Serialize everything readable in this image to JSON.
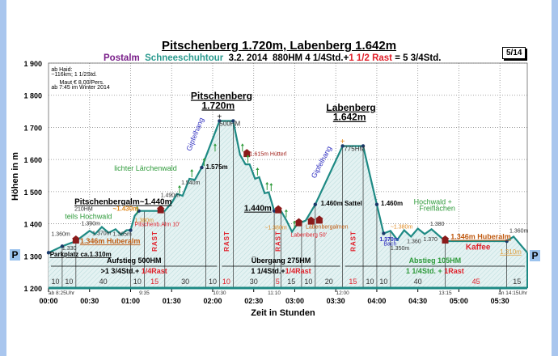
{
  "header": {
    "title": "Pitschenberg 1.720m, Labenberg 1.642m",
    "sub_location": "Postalm",
    "sub_type": "Schneeschuhtour",
    "sub_date": "3.2. 2014",
    "sub_hm": "880HM  4 1/4Std.+",
    "sub_rast": "1 1/2 Rast",
    "sub_total": "= 5 3/4Std.",
    "page": "5/14",
    "parking": "P"
  },
  "colors": {
    "profile": "#1e8a84",
    "fill": "#dceeee",
    "red": "#e0202a",
    "green": "#2e9a3a",
    "orange": "#e08a20",
    "purple": "#7a1f8a",
    "teal": "#2a9a8e",
    "blue": "#3030c0"
  },
  "chart_data": {
    "type": "area",
    "title": "Pitschenberg 1.720m, Labenberg 1.642m",
    "xlabel": "Zeit in Stunden",
    "ylabel": "Höhen in m",
    "xlim": [
      0,
      350
    ],
    "ylim": [
      1200,
      1900
    ],
    "x_unit": "minutes",
    "x_ticks": [
      {
        "t": 0,
        "label": "00:00"
      },
      {
        "t": 30,
        "label": "00:30"
      },
      {
        "t": 60,
        "label": "01:00"
      },
      {
        "t": 90,
        "label": "01:30"
      },
      {
        "t": 120,
        "label": "02:00"
      },
      {
        "t": 150,
        "label": "02:30"
      },
      {
        "t": 180,
        "label": "03:00"
      },
      {
        "t": 210,
        "label": "03:30"
      },
      {
        "t": 240,
        "label": "04:00"
      },
      {
        "t": 270,
        "label": "04:30"
      },
      {
        "t": 300,
        "label": "05:00"
      },
      {
        "t": 330,
        "label": "05:30"
      }
    ],
    "y_ticks": [
      {
        "v": 1200,
        "label": "1 200"
      },
      {
        "v": 1300,
        "label": "1 300"
      },
      {
        "v": 1400,
        "label": "1 400"
      },
      {
        "v": 1500,
        "label": "1 500"
      },
      {
        "v": 1600,
        "label": "1 600"
      },
      {
        "v": 1700,
        "label": "1 700"
      },
      {
        "v": 1800,
        "label": "1 800"
      },
      {
        "v": 1900,
        "label": "1 900"
      }
    ],
    "grid": true,
    "profile": [
      [
        0,
        1310
      ],
      [
        10,
        1330
      ],
      [
        20,
        1346
      ],
      [
        25,
        1362
      ],
      [
        30,
        1378
      ],
      [
        34,
        1368
      ],
      [
        39,
        1390
      ],
      [
        44,
        1372
      ],
      [
        49,
        1383
      ],
      [
        53,
        1366
      ],
      [
        57,
        1380
      ],
      [
        60,
        1380
      ],
      [
        63,
        1425
      ],
      [
        66,
        1440
      ],
      [
        75,
        1440
      ],
      [
        85,
        1440
      ],
      [
        90,
        1465
      ],
      [
        94,
        1493
      ],
      [
        98,
        1487
      ],
      [
        103,
        1540
      ],
      [
        107,
        1537
      ],
      [
        112,
        1575
      ],
      [
        125,
        1720
      ],
      [
        135,
        1720
      ],
      [
        140,
        1615
      ],
      [
        144,
        1585
      ],
      [
        147,
        1585
      ],
      [
        151,
        1540
      ],
      [
        154,
        1545
      ],
      [
        158,
        1495
      ],
      [
        161,
        1498
      ],
      [
        165,
        1440
      ],
      [
        170,
        1440
      ],
      [
        174,
        1410
      ],
      [
        178,
        1375
      ],
      [
        182,
        1400
      ],
      [
        188,
        1410
      ],
      [
        195,
        1460
      ],
      [
        215,
        1642
      ],
      [
        230,
        1642
      ],
      [
        240,
        1460
      ],
      [
        245,
        1370
      ],
      [
        250,
        1378
      ],
      [
        255,
        1350
      ],
      [
        260,
        1380
      ],
      [
        265,
        1360
      ],
      [
        270,
        1385
      ],
      [
        275,
        1368
      ],
      [
        280,
        1383
      ],
      [
        290,
        1346
      ],
      [
        335,
        1346
      ],
      [
        340,
        1360
      ],
      [
        350,
        1310
      ]
    ],
    "markers": [
      [
        0,
        1310
      ],
      [
        10,
        1330
      ],
      [
        60,
        1380
      ],
      [
        66,
        1440
      ],
      [
        112,
        1575
      ],
      [
        125,
        1720
      ],
      [
        135,
        1720
      ],
      [
        165,
        1440
      ],
      [
        195,
        1460
      ],
      [
        215,
        1642
      ],
      [
        230,
        1642
      ],
      [
        240,
        1460
      ],
      [
        245,
        1370
      ],
      [
        335,
        1346
      ]
    ],
    "huts": [
      [
        20,
        1346
      ],
      [
        82,
        1440
      ],
      [
        145,
        1615
      ],
      [
        168,
        1440
      ],
      [
        183,
        1400
      ],
      [
        192,
        1405
      ],
      [
        198,
        1408
      ],
      [
        290,
        1346
      ]
    ],
    "trees": [
      [
        63,
        1430
      ],
      [
        94,
        1495
      ],
      [
        103,
        1545
      ],
      [
        112,
        1580
      ],
      [
        120,
        1625
      ],
      [
        140,
        1625
      ],
      [
        144,
        1590
      ],
      [
        151,
        1550
      ],
      [
        158,
        1505
      ],
      [
        161,
        1502
      ],
      [
        172,
        1420
      ],
      [
        178,
        1385
      ]
    ],
    "segments": [
      {
        "min": "10",
        "rast": false
      },
      {
        "min": "10",
        "rast": false
      },
      {
        "min": "40",
        "rast": false
      },
      {
        "min": "10",
        "rast": false
      },
      {
        "min": "15",
        "rast": true
      },
      {
        "min": "30",
        "rast": false
      },
      {
        "min": "10",
        "rast": false
      },
      {
        "min": "10",
        "rast": true
      },
      {
        "min": "30",
        "rast": false
      },
      {
        "min": "5",
        "rast": true
      },
      {
        "min": "15",
        "rast": false
      },
      {
        "min": "10",
        "rast": false
      },
      {
        "min": "20",
        "rast": false
      },
      {
        "min": "15",
        "rast": true
      },
      {
        "min": "10",
        "rast": false
      },
      {
        "min": "10",
        "rast": false
      },
      {
        "min": "40",
        "rast": false
      },
      {
        "min": "45",
        "rast": "red"
      },
      {
        "min": "15",
        "rast": false
      }
    ],
    "rast_label": "RAST",
    "clock_times": [
      {
        "t": 0,
        "label": "ab 8:25Uhr"
      },
      {
        "t": 70,
        "label": "9:35"
      },
      {
        "t": 125,
        "label": "10:30"
      },
      {
        "t": 165,
        "label": "11:10"
      },
      {
        "t": 215,
        "label": "12:00"
      },
      {
        "t": 290,
        "label": "13:15"
      },
      {
        "t": 350,
        "label": "an 14:15Uhr"
      }
    ],
    "legs": [
      {
        "t0": 0,
        "t1": 125,
        "title": "Aufstieg 500HM",
        "time": ">1 3/4Std.+ ",
        "rast": "1/4Rast",
        "color": "#000"
      },
      {
        "t0": 125,
        "t1": 215,
        "title": "Übergang 275HM",
        "time": "1 1/4Std.+",
        "rast": "1/4Rast",
        "color": "#000"
      },
      {
        "t0": 215,
        "t1": 350,
        "title": "Abstieg 105HM",
        "time": "1 1/4Std. + ",
        "rast": "1Rast",
        "color": "#2e9a3a"
      }
    ],
    "annotations": [
      {
        "text": "ab Haid:",
        "t": 2,
        "e": 1875,
        "c": "#000",
        "s": 7,
        "w": "normal"
      },
      {
        "text": "~116km; 1 1/2Std.",
        "t": 2,
        "e": 1860,
        "c": "#000",
        "s": 7,
        "w": "normal"
      },
      {
        "text": "Maut € 8,00/Pers.",
        "t": 8,
        "e": 1835,
        "c": "#000",
        "s": 7,
        "w": "normal"
      },
      {
        "text": "ab 7:45 im Winter 2014",
        "t": 2,
        "e": 1820,
        "c": "#000",
        "s": 7,
        "w": "normal"
      },
      {
        "text": "Pitschenberg",
        "t": 104,
        "e": 1788,
        "c": "#000",
        "s": 12,
        "w": "bold",
        "u": true
      },
      {
        "text": "1.720m",
        "t": 112,
        "e": 1768,
        "c": "#000",
        "s": 12,
        "w": "bold",
        "u": true
      },
      {
        "text": "Labenberg",
        "t": 203,
        "e": 1752,
        "c": "#000",
        "s": 12,
        "w": "bold",
        "u": true
      },
      {
        "text": "1.642m",
        "t": 208,
        "e": 1732,
        "c": "#000",
        "s": 12,
        "w": "bold",
        "u": true
      },
      {
        "text": "500HM",
        "t": 125,
        "e": 1705,
        "c": "#333",
        "s": 8,
        "w": "normal"
      },
      {
        "text": "775HM",
        "t": 216,
        "e": 1627,
        "c": "#333",
        "s": 8,
        "w": "normal"
      },
      {
        "text": "1.615m Hütterl",
        "t": 147,
        "e": 1612,
        "c": "#a0201a",
        "s": 7,
        "w": "normal"
      },
      {
        "text": "lichter Lärchenwald",
        "t": 48,
        "e": 1565,
        "c": "#2e9a3a",
        "s": 9,
        "w": "normal"
      },
      {
        "text": "1.575m",
        "t": 115,
        "e": 1570,
        "c": "#000",
        "s": 8,
        "w": "bold"
      },
      {
        "text": "1.540m",
        "t": 97,
        "e": 1522,
        "c": "#333",
        "s": 7,
        "w": "normal"
      },
      {
        "text": "1.490m",
        "t": 82,
        "e": 1483,
        "c": "#333",
        "s": 7,
        "w": "normal"
      },
      {
        "text": "Pitschenbergalm~1.440m",
        "t": 19,
        "e": 1460,
        "c": "#000",
        "s": 10,
        "w": "bold",
        "u": true
      },
      {
        "text": "210HM",
        "t": 19,
        "e": 1440,
        "c": "#333",
        "s": 7,
        "w": "normal"
      },
      {
        "text": "~1.430m",
        "t": 47,
        "e": 1440,
        "c": "#e08a20",
        "s": 8,
        "w": "bold"
      },
      {
        "text": "teils Hochwald",
        "t": 12,
        "e": 1415,
        "c": "#2e9a3a",
        "s": 9,
        "w": "normal"
      },
      {
        "text": "1.390m",
        "t": 24,
        "e": 1395,
        "c": "#333",
        "s": 7,
        "w": "normal"
      },
      {
        "text": "Pitschenb.Alm 10'",
        "t": 63,
        "e": 1392,
        "c": "#e0202a",
        "s": 7,
        "w": "normal"
      },
      {
        "text": "1.380m",
        "t": 63,
        "e": 1378,
        "c": "#e08a20",
        "s": 7,
        "w": "normal"
      },
      {
        "text": "1.360m",
        "t": 2,
        "e": 1362,
        "c": "#333",
        "s": 7,
        "w": "normal"
      },
      {
        "text": "1.370m",
        "t": 32,
        "e": 1365,
        "c": "#333",
        "s": 7,
        "w": "normal"
      },
      {
        "text": "1.365m",
        "t": 47,
        "e": 1362,
        "c": "#333",
        "s": 7,
        "w": "normal"
      },
      {
        "text": "1.330",
        "t": 10,
        "e": 1318,
        "c": "#333",
        "s": 7,
        "w": "normal"
      },
      {
        "text": "1.346m Huberalm",
        "t": 23,
        "e": 1338,
        "c": "#c05a10",
        "s": 9,
        "w": "bold",
        "u": true
      },
      {
        "text": "Parkplatz ca.1.310m",
        "t": 1,
        "e": 1298,
        "c": "#000",
        "s": 8,
        "w": "bold",
        "u": true
      },
      {
        "text": "Gipfelhang",
        "t": 104,
        "e": 1625,
        "c": "#3030c0",
        "s": 9,
        "w": "normal",
        "rot": -68
      },
      {
        "text": "Gipfelhang",
        "t": 195,
        "e": 1540,
        "c": "#3030c0",
        "s": 9,
        "w": "normal",
        "rot": -62
      },
      {
        "text": "1.440m",
        "t": 143,
        "e": 1440,
        "c": "#000",
        "s": 10,
        "w": "bold",
        "u": true
      },
      {
        "text": "~1.380m",
        "t": 158,
        "e": 1377,
        "c": "#e08a20",
        "s": 7,
        "w": "normal"
      },
      {
        "text": "Labenberg 50'",
        "t": 177,
        "e": 1360,
        "c": "#e0202a",
        "s": 7,
        "w": "normal"
      },
      {
        "text": "Labenbergalmen",
        "t": 188,
        "e": 1385,
        "c": "#c05a10",
        "s": 7,
        "w": "normal"
      },
      {
        "text": "1.460m  Sattel",
        "t": 199,
        "e": 1457,
        "c": "#000",
        "s": 8,
        "w": "bold"
      },
      {
        "text": "1.460m",
        "t": 243,
        "e": 1457,
        "c": "#000",
        "s": 8,
        "w": "bold"
      },
      {
        "text": "Hochwald +",
        "t": 267,
        "e": 1460,
        "c": "#2e9a3a",
        "s": 9,
        "w": "normal"
      },
      {
        "text": "Freiflächen",
        "t": 271,
        "e": 1440,
        "c": "#2e9a3a",
        "s": 9,
        "w": "normal"
      },
      {
        "text": "~1.380m",
        "t": 250,
        "e": 1385,
        "c": "#e08a20",
        "s": 7,
        "w": "normal"
      },
      {
        "text": "1.380",
        "t": 279,
        "e": 1394,
        "c": "#333",
        "s": 7,
        "w": "normal"
      },
      {
        "text": "1.370m",
        "t": 242,
        "e": 1346,
        "c": "#3030c0",
        "s": 7,
        "w": "bold"
      },
      {
        "text": "Bach",
        "t": 245,
        "e": 1335,
        "c": "#3030c0",
        "s": 7,
        "w": "normal"
      },
      {
        "text": "1.350m",
        "t": 250,
        "e": 1333,
        "c": "#333",
        "s": 7,
        "w": "normal"
      },
      {
        "text": "1.360",
        "t": 262,
        "e": 1340,
        "c": "#333",
        "s": 7,
        "w": "normal"
      },
      {
        "text": "1.370",
        "t": 274,
        "e": 1346,
        "c": "#333",
        "s": 7,
        "w": "normal"
      },
      {
        "text": "1.346m Huberalm",
        "t": 294,
        "e": 1352,
        "c": "#c05a10",
        "s": 9,
        "w": "bold",
        "u": true
      },
      {
        "text": "1.360m",
        "t": 337,
        "e": 1368,
        "c": "#333",
        "s": 7,
        "w": "normal"
      },
      {
        "text": "Kaffee",
        "t": 305,
        "e": 1320,
        "c": "#e0202a",
        "s": 10,
        "w": "bold"
      },
      {
        "text": "1.310m",
        "t": 330,
        "e": 1306,
        "c": "#e0a040",
        "s": 8,
        "w": "normal",
        "u": true
      }
    ]
  }
}
